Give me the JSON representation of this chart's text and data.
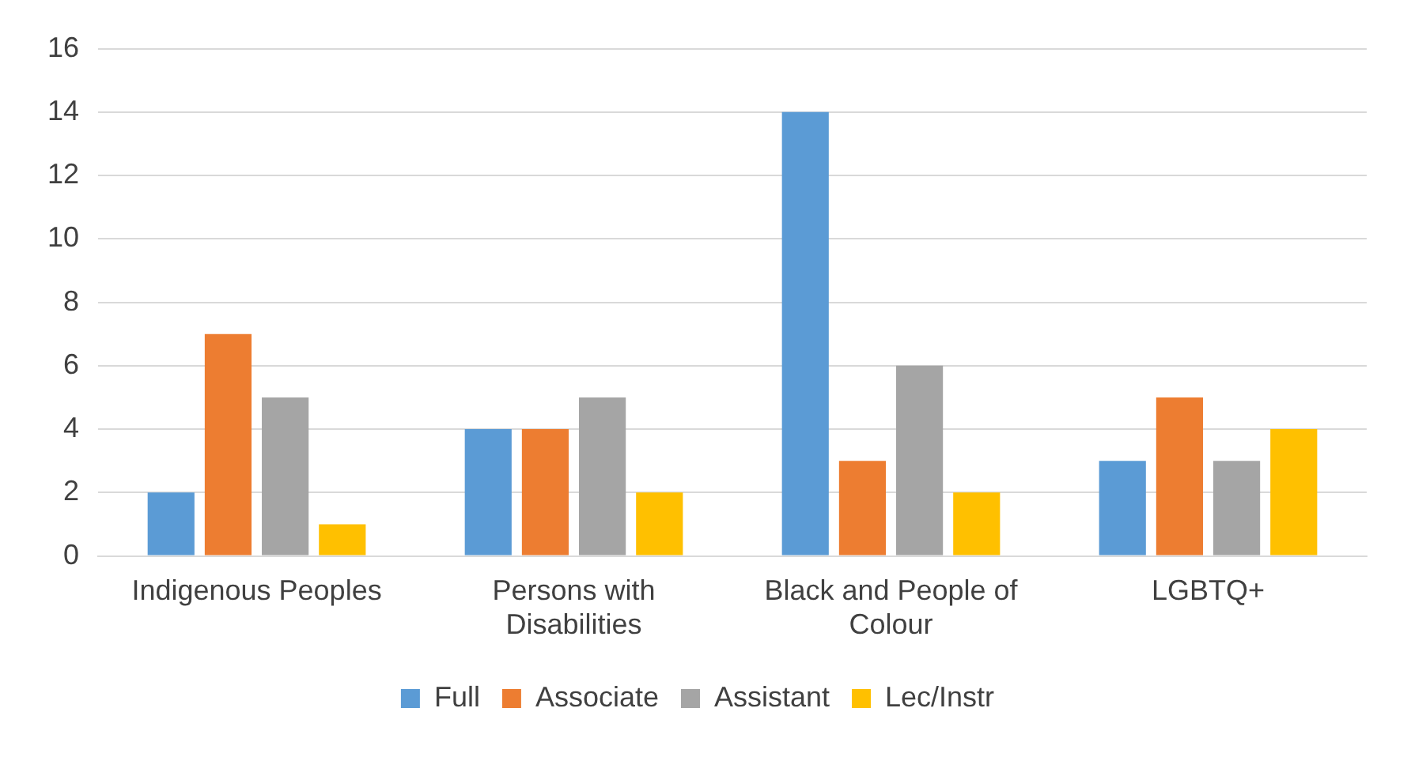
{
  "chart_data": {
    "type": "bar",
    "categories": [
      "Indigenous Peoples",
      "Persons with Disabilities",
      "Black and People of Colour",
      "LGBTQ+"
    ],
    "series": [
      {
        "name": "Full",
        "color": "#5b9bd5",
        "values": [
          2,
          4,
          14,
          3
        ]
      },
      {
        "name": "Associate",
        "color": "#ed7d31",
        "values": [
          7,
          4,
          3,
          5
        ]
      },
      {
        "name": "Assistant",
        "color": "#a5a5a5",
        "values": [
          5,
          5,
          6,
          3
        ]
      },
      {
        "name": "Lec/Instr",
        "color": "#ffc000",
        "values": [
          1,
          2,
          2,
          4
        ]
      }
    ],
    "ylim": [
      0,
      16
    ],
    "yticks": [
      0,
      2,
      4,
      6,
      8,
      10,
      12,
      14,
      16
    ],
    "grid": "y",
    "legend": "bottom"
  }
}
